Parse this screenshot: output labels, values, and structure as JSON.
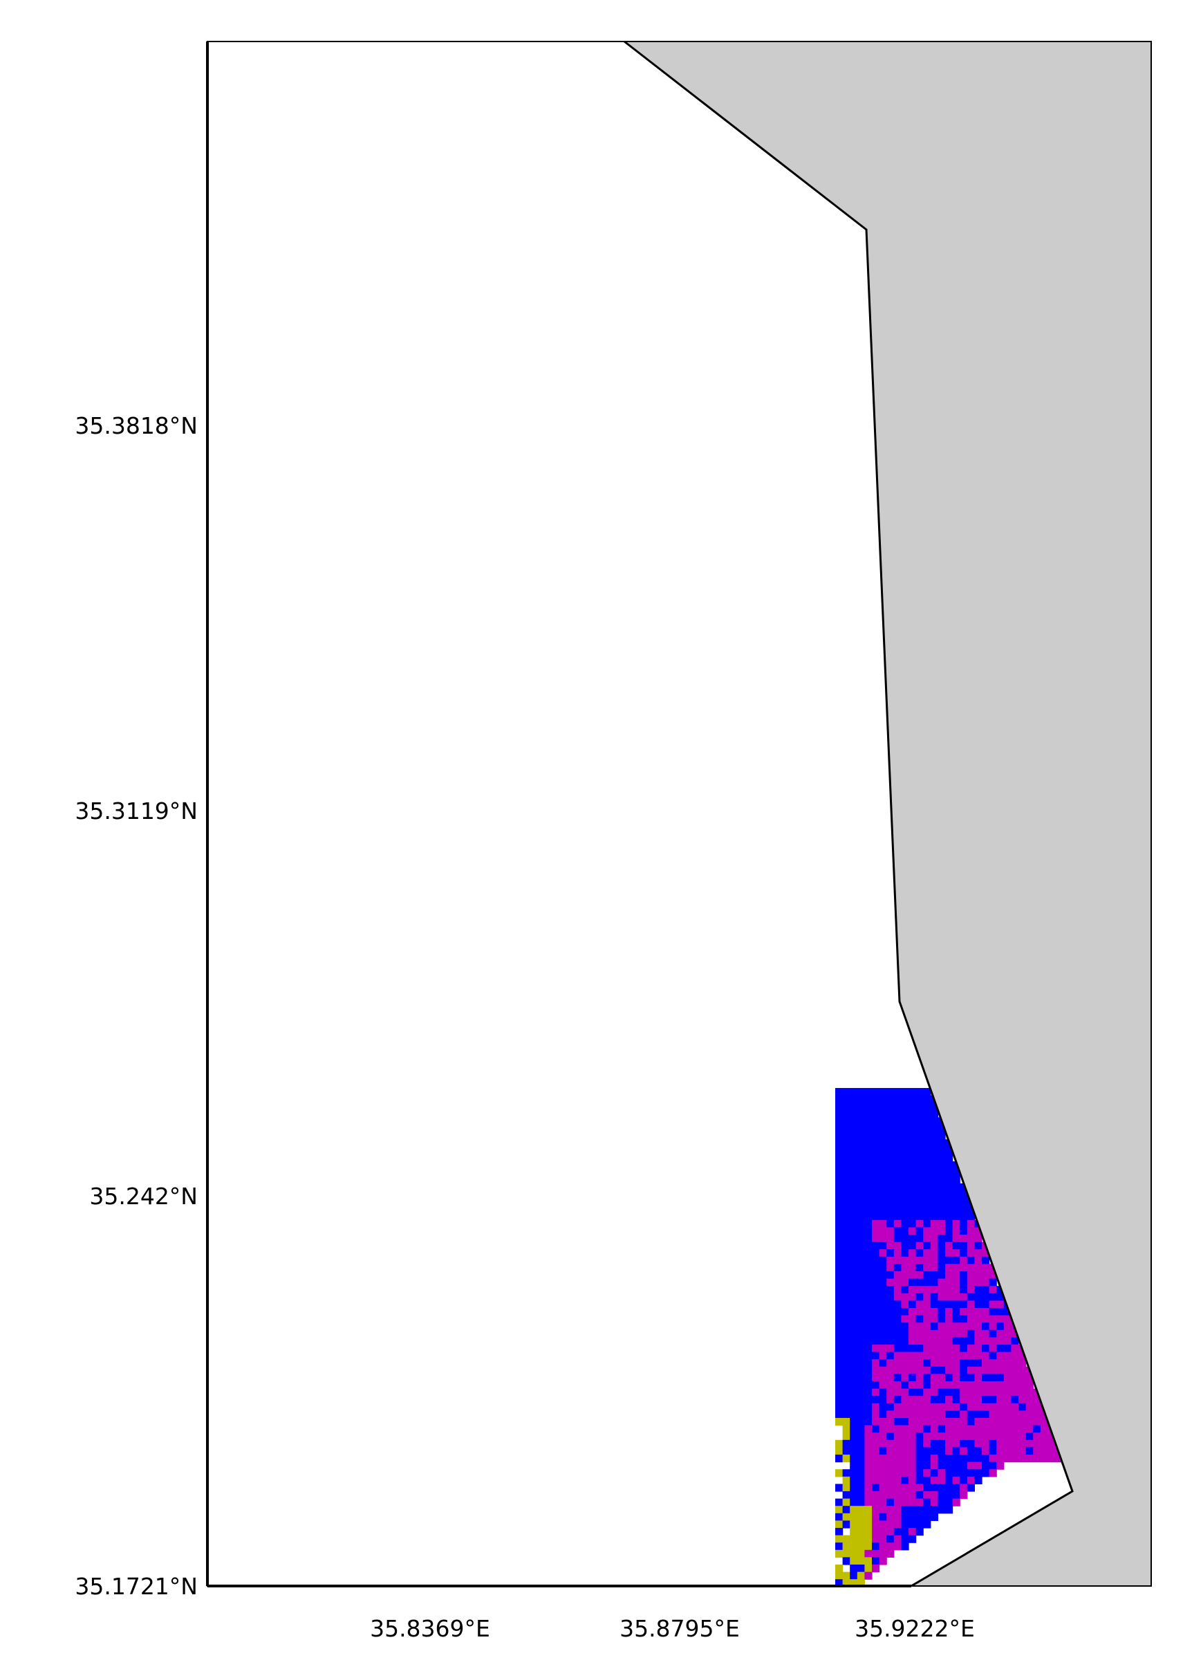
{
  "map": {
    "type": "raster-map",
    "colors": {
      "land": "#cccccc",
      "water": "#ffffff",
      "coastline": "#000000",
      "frame": "#000000",
      "class_blue": "#0000ff",
      "class_magenta": "#bf00bf",
      "class_olive": "#bfbf00"
    },
    "extent": {
      "lon": [
        35.8,
        35.982
      ],
      "lat": [
        35.1721,
        35.4515
      ]
    },
    "y_ticks": [
      {
        "value": 35.3818,
        "label": "35.3818°N"
      },
      {
        "value": 35.3119,
        "label": "35.3119°N"
      },
      {
        "value": 35.242,
        "label": "35.242°N"
      },
      {
        "value": 35.1721,
        "label": "35.1721°N"
      }
    ],
    "x_ticks": [
      {
        "value": 35.8369,
        "label": "35.8369°E"
      },
      {
        "value": 35.8795,
        "label": "35.8795°E"
      },
      {
        "value": 35.9222,
        "label": "35.9222°E"
      }
    ]
  }
}
